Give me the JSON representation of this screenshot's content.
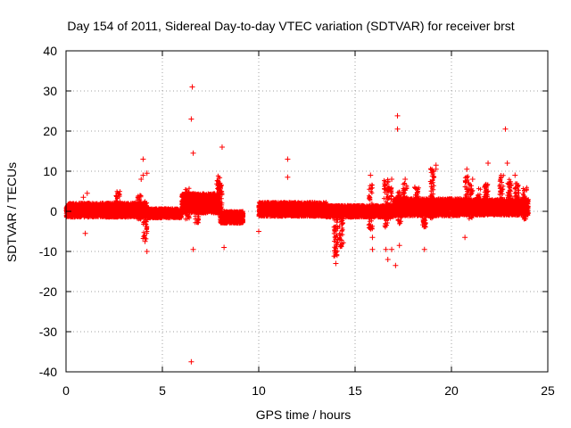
{
  "chart_data": {
    "type": "scatter",
    "title": "Day 154 of 2011, Sidereal Day-to-day VTEC variation (SDTVAR) for receiver brst",
    "xlabel": "GPS time / hours",
    "ylabel": "SDTVAR / TECUs",
    "xlim": [
      0,
      25
    ],
    "ylim": [
      -40,
      40
    ],
    "xticks": [
      0,
      5,
      10,
      15,
      20,
      25
    ],
    "yticks": [
      -40,
      -30,
      -20,
      -10,
      0,
      10,
      20,
      30,
      40
    ],
    "grid": true,
    "marker": "+",
    "color": "#ff0000",
    "band_segments": [
      {
        "x_start": 0.0,
        "x_end": 4.2,
        "center": 0.3,
        "half_width": 1.8
      },
      {
        "x_start": 4.2,
        "x_end": 6.0,
        "center": -0.5,
        "half_width": 1.2
      },
      {
        "x_start": 6.0,
        "x_end": 8.0,
        "center": 2.0,
        "half_width": 2.5
      },
      {
        "x_start": 8.0,
        "x_end": 9.2,
        "center": -1.5,
        "half_width": 1.5
      },
      {
        "x_start": 10.0,
        "x_end": 13.5,
        "center": 0.5,
        "half_width": 1.8
      },
      {
        "x_start": 13.5,
        "x_end": 17.0,
        "center": 0.0,
        "half_width": 1.5
      },
      {
        "x_start": 17.0,
        "x_end": 20.5,
        "center": 1.0,
        "half_width": 2.2
      },
      {
        "x_start": 20.5,
        "x_end": 24.0,
        "center": 1.0,
        "half_width": 2.0
      }
    ],
    "spikes": [
      {
        "x": 2.7,
        "y_min": -1,
        "y_max": 5
      },
      {
        "x": 3.8,
        "y_min": -2,
        "y_max": 4
      },
      {
        "x": 4.1,
        "y_min": -7,
        "y_max": 3
      },
      {
        "x": 6.3,
        "y_min": -2,
        "y_max": 6
      },
      {
        "x": 6.8,
        "y_min": -3,
        "y_max": 4
      },
      {
        "x": 7.9,
        "y_min": -1,
        "y_max": 9
      },
      {
        "x": 8.0,
        "y_min": 0,
        "y_max": 7
      },
      {
        "x": 14.0,
        "y_min": -12,
        "y_max": -1
      },
      {
        "x": 14.3,
        "y_min": -9,
        "y_max": 0
      },
      {
        "x": 15.8,
        "y_min": -5,
        "y_max": 7
      },
      {
        "x": 16.6,
        "y_min": -4,
        "y_max": 8
      },
      {
        "x": 16.8,
        "y_min": -2,
        "y_max": 6
      },
      {
        "x": 17.3,
        "y_min": -4,
        "y_max": 5
      },
      {
        "x": 17.6,
        "y_min": -1,
        "y_max": 7
      },
      {
        "x": 18.2,
        "y_min": -1,
        "y_max": 6
      },
      {
        "x": 18.6,
        "y_min": -4,
        "y_max": 3
      },
      {
        "x": 19.0,
        "y_min": -2,
        "y_max": 11
      },
      {
        "x": 20.8,
        "y_min": -1,
        "y_max": 9
      },
      {
        "x": 21.0,
        "y_min": -2,
        "y_max": 7
      },
      {
        "x": 21.4,
        "y_min": -1,
        "y_max": 6
      },
      {
        "x": 21.8,
        "y_min": -1,
        "y_max": 7
      },
      {
        "x": 22.6,
        "y_min": -1,
        "y_max": 9
      },
      {
        "x": 23.0,
        "y_min": 0,
        "y_max": 8
      },
      {
        "x": 23.4,
        "y_min": -1,
        "y_max": 7
      },
      {
        "x": 23.8,
        "y_min": -2,
        "y_max": 6
      }
    ],
    "outliers": [
      {
        "x": 6.55,
        "y": 31.0
      },
      {
        "x": 6.5,
        "y": 23.0
      },
      {
        "x": 6.6,
        "y": 14.5
      },
      {
        "x": 6.6,
        "y": -9.5
      },
      {
        "x": 6.5,
        "y": -37.5
      },
      {
        "x": 8.1,
        "y": 16.0
      },
      {
        "x": 8.2,
        "y": -9.0
      },
      {
        "x": 4.0,
        "y": 13.0
      },
      {
        "x": 4.0,
        "y": 9.0
      },
      {
        "x": 4.2,
        "y": 9.5
      },
      {
        "x": 3.9,
        "y": 8.0
      },
      {
        "x": 4.2,
        "y": -10.0
      },
      {
        "x": 4.1,
        "y": -7.5
      },
      {
        "x": 1.0,
        "y": -5.5
      },
      {
        "x": 1.1,
        "y": 4.5
      },
      {
        "x": 0.9,
        "y": 3.5
      },
      {
        "x": 11.5,
        "y": 13.0
      },
      {
        "x": 11.5,
        "y": 8.5
      },
      {
        "x": 10.0,
        "y": -5.0
      },
      {
        "x": 14.0,
        "y": -13.0
      },
      {
        "x": 15.8,
        "y": 9.0
      },
      {
        "x": 15.9,
        "y": -6.5
      },
      {
        "x": 15.9,
        "y": -9.5
      },
      {
        "x": 16.6,
        "y": -9.5
      },
      {
        "x": 16.7,
        "y": -12.0
      },
      {
        "x": 17.1,
        "y": -13.5
      },
      {
        "x": 17.2,
        "y": 23.8
      },
      {
        "x": 17.2,
        "y": 20.5
      },
      {
        "x": 16.7,
        "y": 7.5
      },
      {
        "x": 16.9,
        "y": 8.0
      },
      {
        "x": 17.6,
        "y": 8.0
      },
      {
        "x": 17.3,
        "y": -8.5
      },
      {
        "x": 16.9,
        "y": -9.5
      },
      {
        "x": 18.6,
        "y": -9.5
      },
      {
        "x": 19.2,
        "y": 11.5
      },
      {
        "x": 19.2,
        "y": 10.5
      },
      {
        "x": 20.7,
        "y": -6.5
      },
      {
        "x": 20.8,
        "y": 10.5
      },
      {
        "x": 21.9,
        "y": 12.0
      },
      {
        "x": 22.8,
        "y": 20.5
      },
      {
        "x": 22.9,
        "y": 12.0
      },
      {
        "x": 18.1,
        "y": 6.0
      },
      {
        "x": 21.1,
        "y": 8.0
      },
      {
        "x": 23.3,
        "y": 9.0
      }
    ]
  }
}
